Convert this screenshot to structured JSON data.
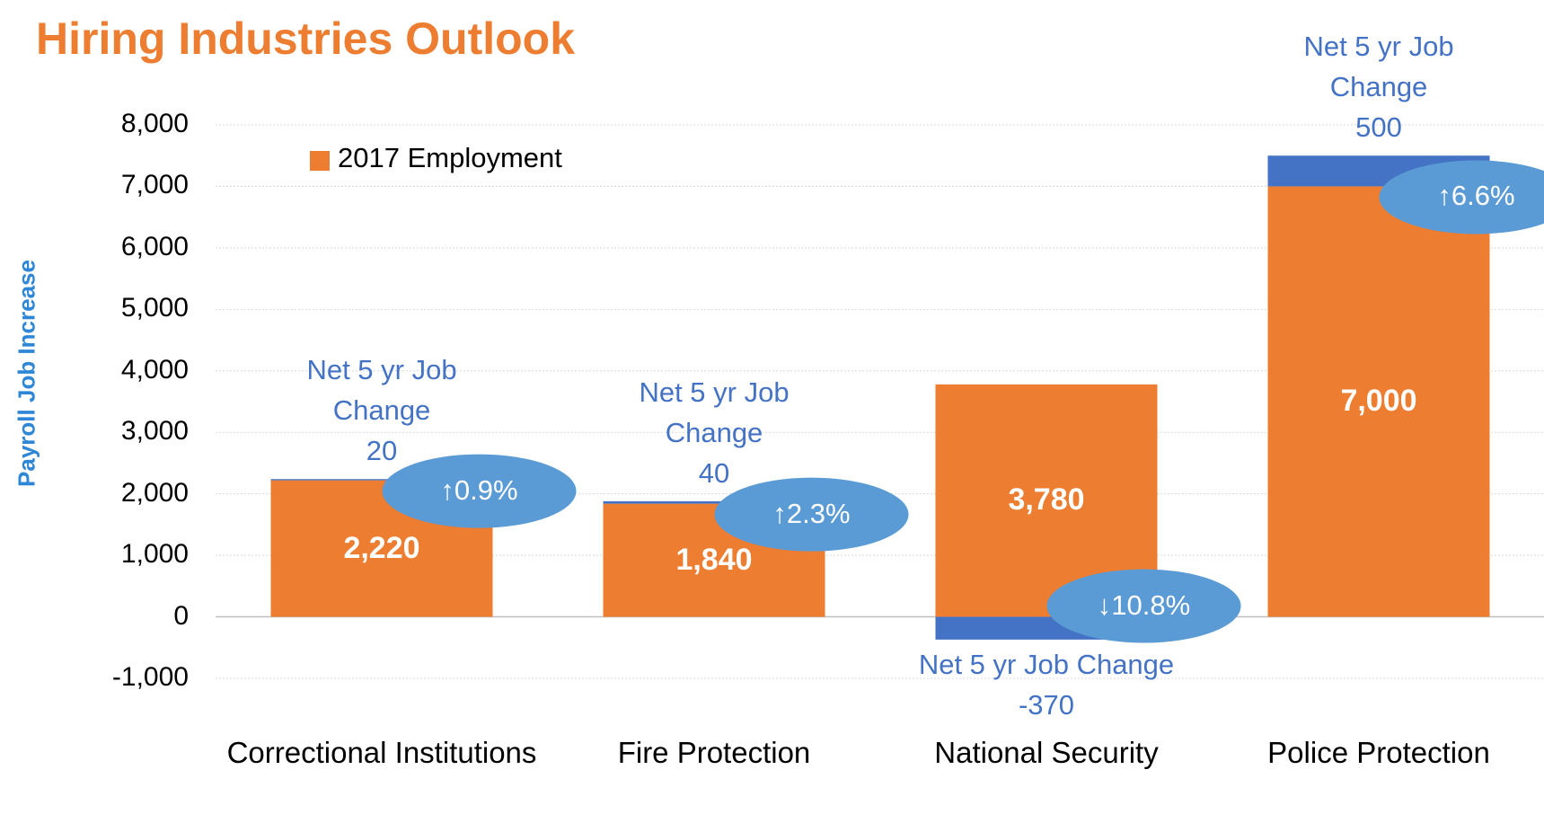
{
  "chart_data": {
    "type": "bar",
    "stacked": true,
    "title": "Hiring Industries Outlook",
    "y_label": "Payroll Job Increase",
    "categories": [
      "Correctional Institutions",
      "Fire Protection",
      "National Security",
      "Police Protection"
    ],
    "series": [
      {
        "name": "2017 Employment",
        "color": "#ED7D31",
        "values": [
          2220,
          1840,
          3780,
          7000
        ],
        "value_labels": [
          "2,220",
          "1,840",
          "3,780",
          "7,000"
        ]
      },
      {
        "color": "#4472C4",
        "values": [
          20,
          40,
          -370,
          500
        ]
      }
    ],
    "net_label": "Net 5 yr Job Change",
    "change_labels": [
      "↑0.9%",
      "↑2.3%",
      "↓10.8%",
      "↑6.6%"
    ],
    "change_color": "#5B9BD5",
    "ylim": [
      -1000,
      8000
    ],
    "yticks": [
      {
        "value": -1000,
        "label": "-1,000"
      },
      0,
      {
        "value": 1000,
        "label": "1,000"
      },
      {
        "value": 2000,
        "label": "2,000"
      },
      {
        "value": 3000,
        "label": "3,000"
      },
      {
        "value": 4000,
        "label": "4,000"
      },
      {
        "value": 5000,
        "label": "5,000"
      },
      {
        "value": 6000,
        "label": "6,000"
      },
      {
        "value": 7000,
        "label": "7,000"
      },
      {
        "value": 8000,
        "label": "8,000"
      }
    ],
    "grid": true,
    "legend": "top-left"
  }
}
